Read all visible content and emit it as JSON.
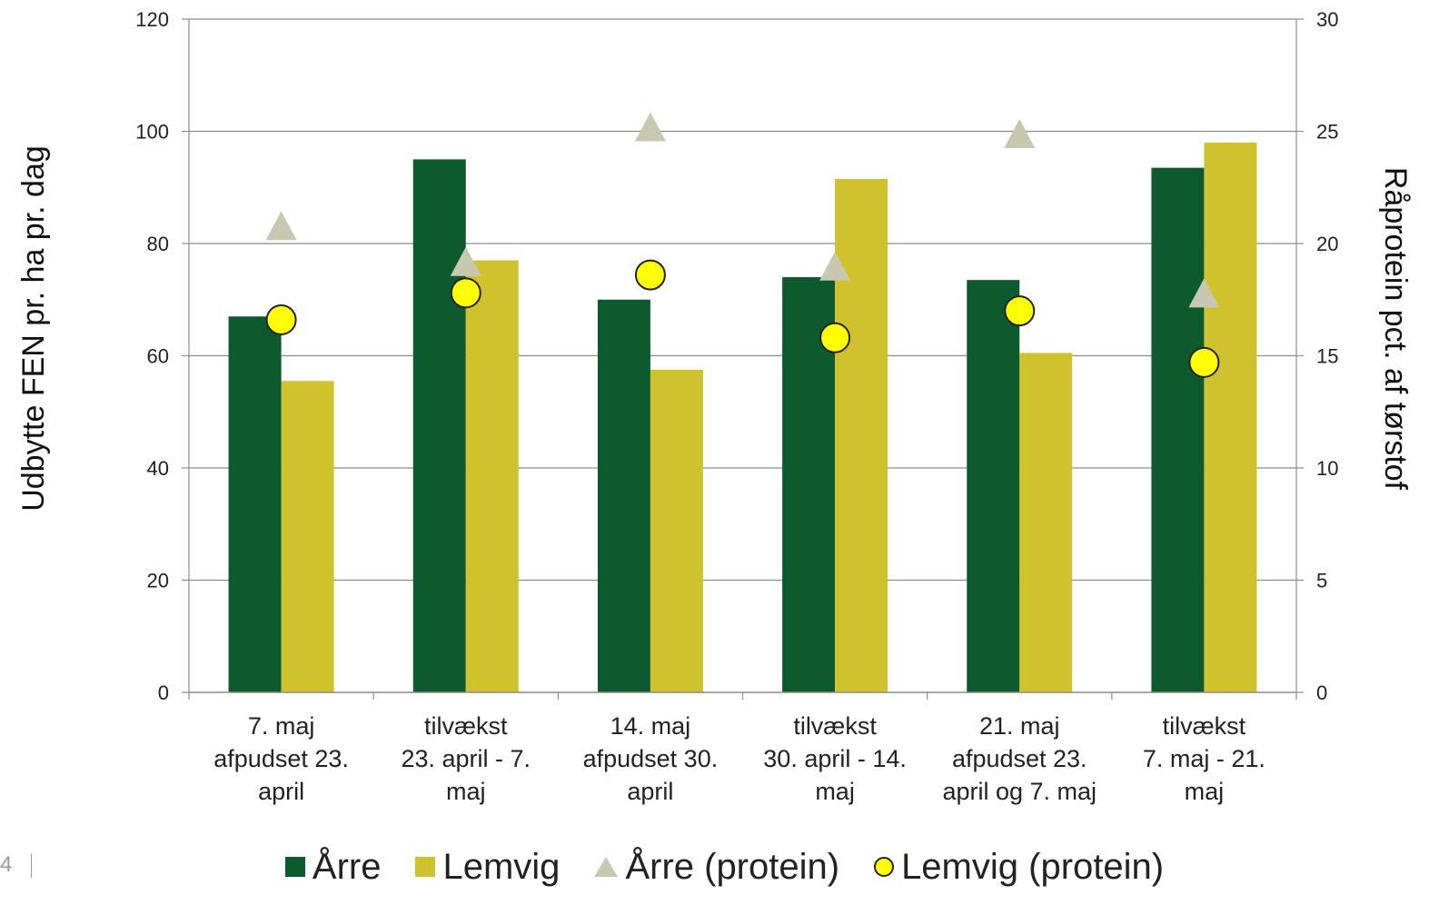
{
  "chart_data": {
    "type": "bar",
    "categories": [
      [
        "7. maj",
        "afpudset 23.",
        "april"
      ],
      [
        "tilvækst",
        "23. april - 7.",
        "maj"
      ],
      [
        "14. maj",
        "afpudset 30.",
        "april"
      ],
      [
        "tilvækst",
        "30. april - 14.",
        "maj"
      ],
      [
        "21. maj",
        "afpudset 23.",
        "april og 7. maj"
      ],
      [
        "tilvækst",
        "7. maj - 21.",
        "maj"
      ]
    ],
    "series": [
      {
        "name": "Årre",
        "kind": "bar",
        "axis": "left",
        "color": "#0d5a2e",
        "values": [
          67,
          95,
          70,
          74,
          73.5,
          93.5
        ]
      },
      {
        "name": "Lemvig",
        "kind": "bar",
        "axis": "left",
        "color": "#d0c22c",
        "values": [
          55.5,
          77,
          57.5,
          91.5,
          60.5,
          98
        ]
      },
      {
        "name": "Årre (protein)",
        "kind": "marker-triangle",
        "axis": "right",
        "color": "#c8c8b0",
        "values": [
          20.8,
          19.2,
          25.2,
          19.0,
          24.9,
          17.8
        ]
      },
      {
        "name": "Lemvig (protein)",
        "kind": "marker-circle",
        "axis": "right",
        "color": "#ffff00",
        "values": [
          16.6,
          17.8,
          18.6,
          15.8,
          17.0,
          14.7
        ]
      }
    ],
    "ylabel": "Udbytte FEN pr. ha pr. dag",
    "y2label": "Råprotein pct. af tørstof",
    "ylim": [
      0,
      120
    ],
    "y2lim": [
      0,
      30
    ],
    "yticks": [
      0,
      20,
      40,
      60,
      80,
      100,
      120
    ],
    "y2ticks": [
      0,
      5,
      10,
      15,
      20,
      25,
      30
    ],
    "grid": true,
    "legend_position": "bottom"
  },
  "page_number": "4"
}
